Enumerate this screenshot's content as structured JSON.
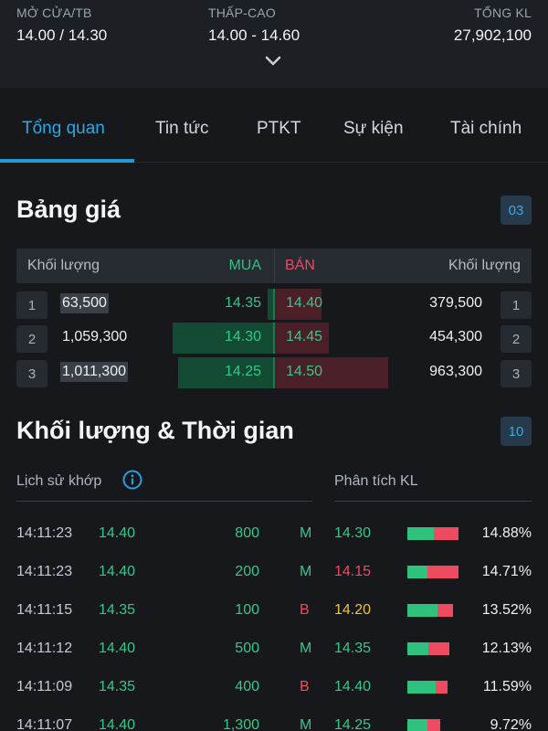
{
  "stats": [
    {
      "label": "MỞ CỬA/TB",
      "value": "14.00 / 14.30"
    },
    {
      "label": "THẤP-CAO",
      "value": "14.00 - 14.60"
    },
    {
      "label": "TỔNG KL",
      "value": "27,902,100"
    }
  ],
  "tabs": [
    "Tổng quan",
    "Tin tức",
    "PTKT",
    "Sự kiện",
    "Tài chính"
  ],
  "board": {
    "title": "Bảng giá",
    "badge": "03",
    "head": {
      "vol_left": "Khối lượng",
      "buy": "MUA",
      "sell": "BÁN",
      "vol_right": "Khối lượng"
    },
    "rows": [
      {
        "level": "1",
        "buy_vol": "63,500",
        "buy_price": "14.35",
        "sell_price": "14.40",
        "sell_vol": "379,500",
        "buy_share": 0.02,
        "sell_share": 0.18
      },
      {
        "level": "2",
        "buy_vol": "1,059,300",
        "buy_price": "14.30",
        "sell_price": "14.45",
        "sell_vol": "454,300",
        "buy_share": 0.39,
        "sell_share": 0.21
      },
      {
        "level": "3",
        "buy_vol": "1,011,300",
        "buy_price": "14.25",
        "sell_price": "14.50",
        "sell_vol": "963,300",
        "buy_share": 0.37,
        "sell_share": 0.44
      }
    ]
  },
  "trades": {
    "title": "Khối lượng & Thời gian",
    "badge": "10",
    "history_label": "Lịch sử khớp",
    "analysis_label": "Phân tích KL",
    "rows": [
      {
        "time": "14:11:23",
        "price": "14.40",
        "vol": "800",
        "side": "M",
        "a_price": "14.30",
        "a_color": "green",
        "buy_frac": 0.52,
        "pct": "14.88%",
        "bar_frac": 1.0
      },
      {
        "time": "14:11:23",
        "price": "14.40",
        "vol": "200",
        "side": "M",
        "a_price": "14.15",
        "a_color": "red",
        "buy_frac": 0.4,
        "pct": "14.71%",
        "bar_frac": 1.0
      },
      {
        "time": "14:11:15",
        "price": "14.35",
        "vol": "100",
        "side": "B",
        "a_price": "14.20",
        "a_color": "yellow",
        "buy_frac": 0.65,
        "pct": "13.52%",
        "bar_frac": 0.9
      },
      {
        "time": "14:11:12",
        "price": "14.40",
        "vol": "500",
        "side": "M",
        "a_price": "14.35",
        "a_color": "green",
        "buy_frac": 0.5,
        "pct": "12.13%",
        "bar_frac": 0.82
      },
      {
        "time": "14:11:09",
        "price": "14.35",
        "vol": "400",
        "side": "B",
        "a_price": "14.40",
        "a_color": "green",
        "buy_frac": 0.7,
        "pct": "11.59%",
        "bar_frac": 0.78
      },
      {
        "time": "14:11:07",
        "price": "14.40",
        "vol": "1,300",
        "side": "M",
        "a_price": "14.25",
        "a_color": "green",
        "buy_frac": 0.6,
        "pct": "9.72%",
        "bar_frac": 0.65
      }
    ]
  }
}
